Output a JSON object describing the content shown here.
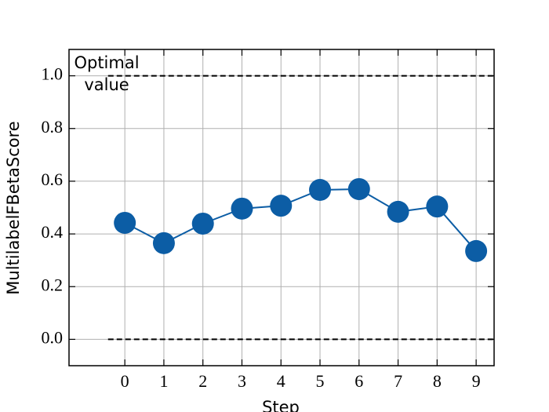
{
  "chart_data": {
    "type": "line",
    "x_label": "Step",
    "y_label": "MultilabelFBetaScore",
    "x": [
      0,
      1,
      2,
      3,
      4,
      5,
      6,
      7,
      8,
      9
    ],
    "series": [
      {
        "color": "#0c5da5",
        "values": [
          0.442,
          0.365,
          0.439,
          0.496,
          0.507,
          0.567,
          0.57,
          0.484,
          0.504,
          0.335
        ]
      }
    ],
    "xlim": [
      -1.43,
      9.46
    ],
    "ylim": [
      -0.1,
      1.1
    ],
    "xticks": [
      0,
      1,
      2,
      3,
      4,
      5,
      6,
      7,
      8,
      9
    ],
    "yticks": [
      {
        "value": 0,
        "label": "0.0"
      },
      0.2,
      0.4,
      0.6,
      {
        "value": 1,
        "label": "1.0"
      },
      0.8
    ],
    "grid": true,
    "hlines": [
      {
        "y": 1,
        "xmin": -0.43
      },
      {
        "y": 0,
        "xmin": -0.43
      }
    ],
    "annotation": [
      "Optimal",
      "value"
    ]
  }
}
